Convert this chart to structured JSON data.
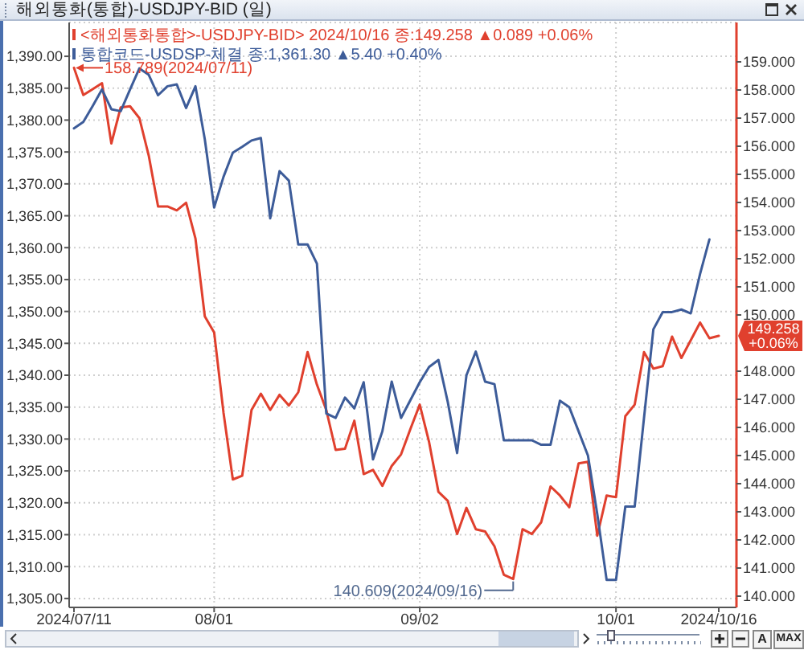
{
  "chart_data": {
    "type": "line",
    "title": "해외통화(통합)-USDJPY-BID (일)",
    "categories": [
      "2024/07/11",
      null,
      null,
      null,
      null,
      null,
      null,
      null,
      null,
      null,
      null,
      null,
      null,
      null,
      null,
      "08/01",
      null,
      null,
      null,
      null,
      null,
      null,
      null,
      null,
      null,
      null,
      null,
      null,
      null,
      null,
      null,
      null,
      null,
      null,
      null,
      null,
      null,
      "09/02",
      null,
      null,
      null,
      null,
      null,
      null,
      null,
      null,
      null,
      null,
      null,
      null,
      null,
      null,
      null,
      null,
      null,
      null,
      null,
      null,
      "10/01",
      null,
      null,
      null,
      null,
      null,
      null,
      null,
      null,
      null,
      null,
      "2024/10/16"
    ],
    "series": [
      {
        "name": "<해외통화통합>-USDJPY-BID> 2024/10/16 종:149.258 ▲0.089 +0.06%",
        "color": "#e0402e",
        "axis": "y2",
        "values": [
          158.789,
          157.82,
          158.03,
          158.24,
          156.1,
          157.38,
          157.42,
          157.0,
          155.67,
          153.86,
          153.86,
          153.72,
          153.99,
          152.72,
          149.95,
          149.38,
          146.53,
          144.15,
          144.28,
          146.62,
          147.2,
          146.62,
          147.16,
          146.78,
          147.25,
          148.68,
          147.52,
          146.62,
          145.2,
          145.24,
          146.24,
          144.34,
          144.49,
          143.92,
          144.63,
          145.04,
          145.94,
          146.81,
          145.48,
          143.71,
          143.39,
          142.21,
          143.14,
          142.38,
          142.3,
          141.77,
          140.76,
          140.609,
          142.38,
          142.21,
          142.63,
          143.9,
          143.58,
          143.16,
          144.72,
          144.78,
          142.15,
          143.58,
          143.52,
          146.4,
          146.81,
          148.68,
          148.09,
          148.18,
          149.23,
          148.47,
          149.1,
          149.73,
          149.17,
          149.258
        ]
      },
      {
        "name": "통합코드-USDSP-체결 종:1,361.30 ▲5.40 +0.40%",
        "color": "#3d5c99",
        "values": [
          1378.7,
          1379.7,
          1382.2,
          1384.8,
          1381.7,
          1381.4,
          1384.8,
          1388.1,
          1387.1,
          1383.9,
          1385.3,
          1385.6,
          1381.9,
          1385.3,
          1377.0,
          1366.3,
          1371.1,
          1374.9,
          1375.8,
          1376.8,
          1377.2,
          1364.6,
          1372.0,
          1370.5,
          1360.5,
          1360.5,
          1357.5,
          1334.0,
          1333.3,
          1336.5,
          1334.8,
          1338.9,
          1326.8,
          1331.2,
          1339.0,
          1333.3,
          1336.1,
          1338.9,
          1341.3,
          1342.4,
          1335.8,
          1327.8,
          1340.0,
          1343.7,
          1339.0,
          1338.6,
          1329.8,
          1329.8,
          1329.8,
          1329.8,
          1329.1,
          1329.1,
          1336.0,
          1335.0,
          1331.2,
          1327.4,
          1318.2,
          1307.9,
          1307.9,
          1319.4,
          1319.4,
          1333.3,
          1347.2,
          1349.9,
          1349.9,
          1350.3,
          1349.7,
          1355.9,
          1361.3,
          null
        ]
      }
    ],
    "ylim": [
      1303.6,
      1395.3
    ],
    "yticks": [
      {
        "value": 1305,
        "label": "1,305.00"
      },
      {
        "value": 1310,
        "label": "1,310.00"
      },
      {
        "value": 1315,
        "label": "1,315.00"
      },
      {
        "value": 1320,
        "label": "1,320.00"
      },
      {
        "value": 1325,
        "label": "1,325.00"
      },
      {
        "value": 1330,
        "label": "1,330.00"
      },
      {
        "value": 1335,
        "label": "1,335.00"
      },
      {
        "value": 1340,
        "label": "1,340.00"
      },
      {
        "value": 1345,
        "label": "1,345.00"
      },
      {
        "value": 1350,
        "label": "1,350.00"
      },
      {
        "value": 1355,
        "label": "1,355.00"
      },
      {
        "value": 1360,
        "label": "1,360.00"
      },
      {
        "value": 1365,
        "label": "1,365.00"
      },
      {
        "value": 1370,
        "label": "1,370.00"
      },
      {
        "value": 1375,
        "label": "1,375.00"
      },
      {
        "value": 1380,
        "label": "1,380.00"
      },
      {
        "value": 1385,
        "label": "1,385.00"
      },
      {
        "value": 1390,
        "label": "1,390.00"
      }
    ],
    "y2lim": [
      139.6,
      160.4
    ],
    "y2ticks": [
      {
        "value": 140,
        "label": "140.000"
      },
      {
        "value": 141,
        "label": "141.000"
      },
      {
        "value": 142,
        "label": "142.000"
      },
      {
        "value": 143,
        "label": "143.000"
      },
      {
        "value": 144,
        "label": "144.000"
      },
      {
        "value": 145,
        "label": "145.000"
      },
      {
        "value": 146,
        "label": "146.000"
      },
      {
        "value": 147,
        "label": "147.000"
      },
      {
        "value": 148,
        "label": "148.000"
      },
      {
        "value": 150,
        "label": "150.000"
      },
      {
        "value": 151,
        "label": "151.000"
      },
      {
        "value": 152,
        "label": "152.000"
      },
      {
        "value": 153,
        "label": "153.000"
      },
      {
        "value": 154,
        "label": "154.000"
      },
      {
        "value": 155,
        "label": "155.000"
      },
      {
        "value": 156,
        "label": "156.000"
      },
      {
        "value": 157,
        "label": "157.000"
      },
      {
        "value": 158,
        "label": "158.000"
      },
      {
        "value": 159,
        "label": "159.000"
      }
    ],
    "grid": true,
    "legend": "top left",
    "annotations": [
      "158.789(2024/07/11)",
      "140.609(2024/09/16)",
      "149.258\n+0.06%",
      "A",
      "MAX"
    ]
  }
}
